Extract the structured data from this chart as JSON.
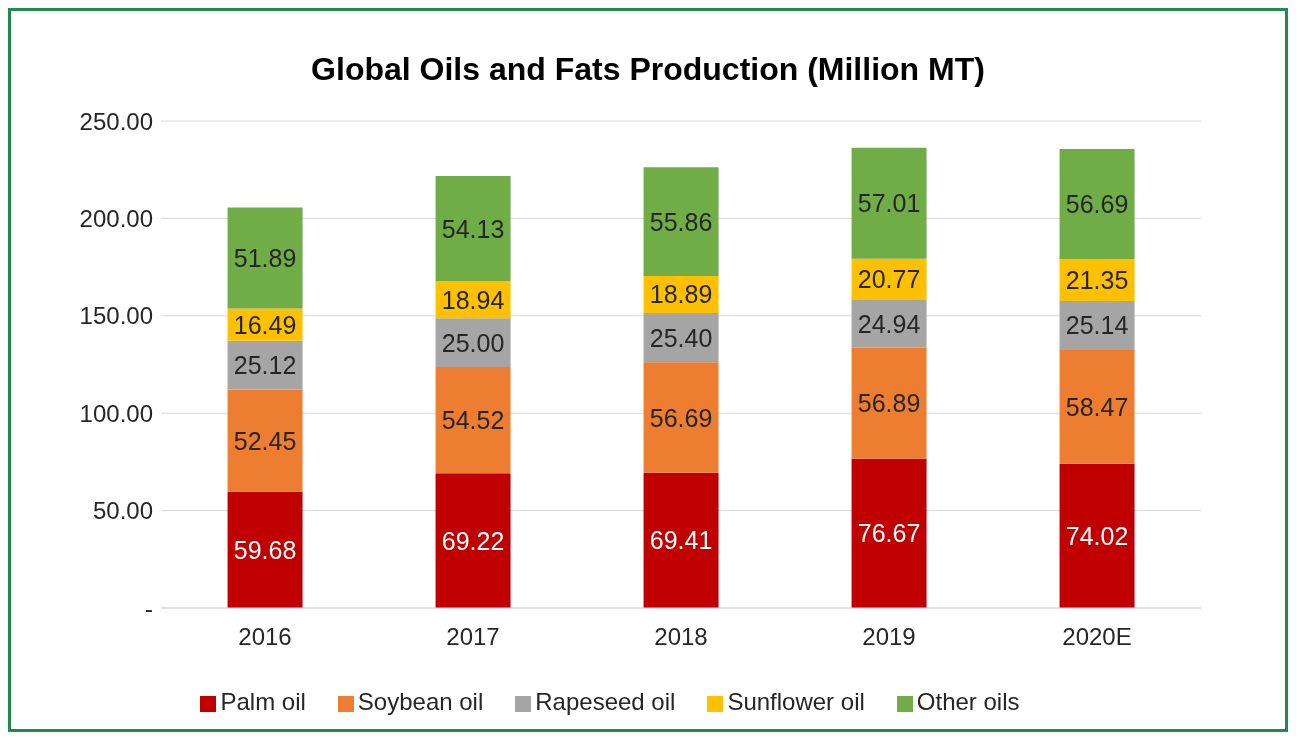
{
  "chart_data": {
    "type": "bar",
    "title": "Global Oils and Fats Production (Million MT)",
    "stacked": true,
    "categories": [
      "2016",
      "2017",
      "2018",
      "2019",
      "2020E"
    ],
    "series": [
      {
        "name": "Palm oil",
        "color": "#c00000",
        "values": [
          59.68,
          69.22,
          69.41,
          76.67,
          74.02
        ],
        "value_labels": [
          "59.68",
          "69.22",
          "69.41",
          "76.67",
          "74.02"
        ]
      },
      {
        "name": "Soybean oil",
        "color": "#ed7d31",
        "values": [
          52.45,
          54.52,
          56.69,
          56.89,
          58.47
        ],
        "value_labels": [
          "52.45",
          "54.52",
          "56.69",
          "56.89",
          "58.47"
        ]
      },
      {
        "name": "Rapeseed oil",
        "color": "#a5a5a5",
        "values": [
          25.12,
          25.0,
          25.4,
          24.94,
          25.14
        ],
        "value_labels": [
          "25.12",
          "25.00",
          "25.40",
          "24.94",
          "25.14"
        ]
      },
      {
        "name": "Sunflower oil",
        "color": "#ffc000",
        "values": [
          16.49,
          18.94,
          18.89,
          20.77,
          21.35
        ],
        "value_labels": [
          "16.49",
          "18.94",
          "18.89",
          "20.77",
          "21.35"
        ]
      },
      {
        "name": "Other oils",
        "color": "#70ad47",
        "values": [
          51.89,
          54.13,
          55.86,
          57.01,
          56.69
        ],
        "value_labels": [
          "51.89",
          "54.13",
          "55.86",
          "57.01",
          "56.69"
        ]
      }
    ],
    "ylim": [
      0,
      250
    ],
    "yticks": [
      {
        "value": 0,
        "label": "-"
      },
      {
        "value": 50,
        "label": "50.00"
      },
      {
        "value": 100,
        "label": "100.00"
      },
      {
        "value": 150,
        "label": "150.00"
      },
      {
        "value": 200,
        "label": "200.00"
      },
      {
        "value": 250,
        "label": "250.00"
      }
    ],
    "grid": "y",
    "legend": "bottom"
  }
}
